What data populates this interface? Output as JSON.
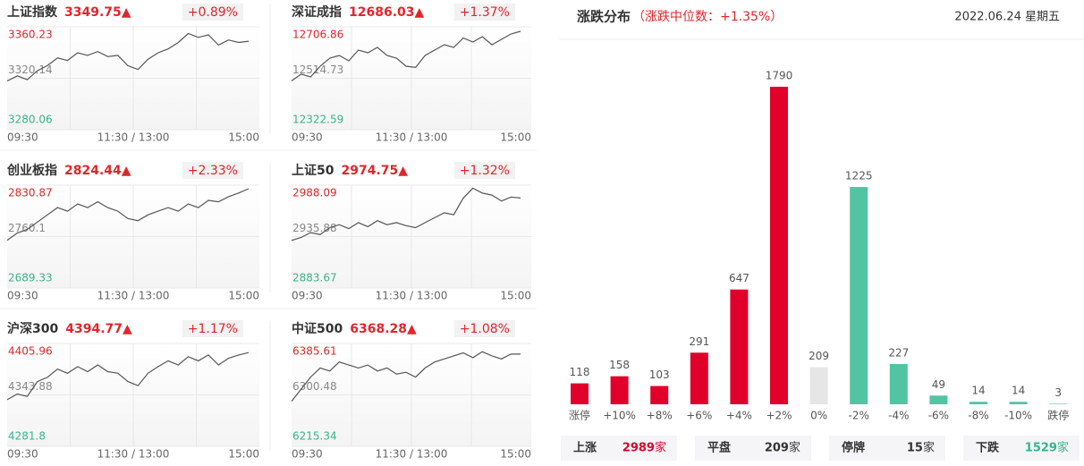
{
  "chart_data": [
    {
      "type": "line",
      "title": "上证指数",
      "price": "3349.75▲",
      "change": "+0.89%",
      "color": "#555555",
      "ylim": [
        3280.06,
        3360.23
      ],
      "yticks": [
        3280.06,
        3320.14,
        3360.23
      ],
      "x_labels": [
        "09:30",
        "11:30 / 13:00",
        "15:00"
      ],
      "values": [
        3318,
        3322,
        3319,
        3326,
        3330,
        3336,
        3334,
        3340,
        3338,
        3341,
        3337,
        3338,
        3330,
        3327,
        3335,
        3340,
        3343,
        3348,
        3355,
        3352,
        3354,
        3346,
        3350,
        3348,
        3349
      ]
    },
    {
      "type": "line",
      "title": "深证成指",
      "price": "12686.03▲",
      "change": "+1.37%",
      "color": "#555555",
      "ylim": [
        12322.59,
        12706.86
      ],
      "yticks": [
        12322.59,
        12514.73,
        12706.86
      ],
      "x_labels": [
        "09:30",
        "11:30 / 13:00",
        "15:00"
      ],
      "values": [
        12505,
        12530,
        12520,
        12560,
        12590,
        12600,
        12580,
        12620,
        12610,
        12630,
        12600,
        12590,
        12560,
        12555,
        12600,
        12620,
        12640,
        12630,
        12665,
        12650,
        12670,
        12640,
        12660,
        12680,
        12690
      ]
    },
    {
      "type": "line",
      "title": "创业板指",
      "price": "2824.44▲",
      "change": "+2.33%",
      "color": "#555555",
      "ylim": [
        2689.33,
        2830.87
      ],
      "yticks": [
        2689.33,
        2760.1,
        2830.87
      ],
      "x_labels": [
        "09:30",
        "11:30 / 13:00",
        "15:00"
      ],
      "values": [
        2755,
        2765,
        2770,
        2780,
        2790,
        2800,
        2795,
        2805,
        2800,
        2808,
        2800,
        2795,
        2785,
        2782,
        2790,
        2795,
        2800,
        2795,
        2805,
        2800,
        2810,
        2808,
        2815,
        2820,
        2826
      ]
    },
    {
      "type": "line",
      "title": "上证50",
      "price": "2974.75▲",
      "change": "+1.32%",
      "color": "#555555",
      "ylim": [
        2883.67,
        2988.09
      ],
      "yticks": [
        2883.67,
        2935.88,
        2988.09
      ],
      "x_labels": [
        "09:30",
        "11:30 / 13:00",
        "15:00"
      ],
      "values": [
        2932,
        2935,
        2940,
        2938,
        2945,
        2948,
        2944,
        2950,
        2946,
        2952,
        2948,
        2950,
        2947,
        2945,
        2950,
        2955,
        2960,
        2958,
        2975,
        2985,
        2980,
        2978,
        2972,
        2976,
        2975
      ]
    },
    {
      "type": "line",
      "title": "沪深300",
      "price": "4394.77▲",
      "change": "+1.17%",
      "color": "#555555",
      "ylim": [
        4281.8,
        4405.96
      ],
      "yticks": [
        4281.8,
        4343.88,
        4405.96
      ],
      "x_labels": [
        "09:30",
        "11:30 / 13:00",
        "15:00"
      ],
      "values": [
        4338,
        4345,
        4342,
        4360,
        4365,
        4375,
        4370,
        4378,
        4372,
        4380,
        4372,
        4370,
        4360,
        4355,
        4370,
        4378,
        4385,
        4380,
        4390,
        4385,
        4392,
        4380,
        4388,
        4392,
        4395
      ]
    },
    {
      "type": "line",
      "title": "中证500",
      "price": "6368.28▲",
      "change": "+1.08%",
      "color": "#555555",
      "ylim": [
        6215.34,
        6385.61
      ],
      "yticks": [
        6215.34,
        6300.48,
        6385.61
      ],
      "x_labels": [
        "09:30",
        "11:30 / 13:00",
        "15:00"
      ],
      "values": [
        6290,
        6310,
        6330,
        6345,
        6340,
        6355,
        6350,
        6345,
        6350,
        6340,
        6345,
        6335,
        6338,
        6330,
        6345,
        6355,
        6360,
        6365,
        6370,
        6362,
        6372,
        6365,
        6360,
        6368,
        6368
      ]
    },
    {
      "type": "bar",
      "title": "涨跌分布",
      "subtitle": "（涨跌中位数：+1.35%）",
      "date": "2022.06.24 星期五",
      "categories": [
        "涨停",
        "+10%",
        "+8%",
        "+6%",
        "+4%",
        "+2%",
        "0%",
        "-2%",
        "-4%",
        "-6%",
        "-8%",
        "-10%",
        "跌停"
      ],
      "values": [
        118,
        158,
        103,
        291,
        647,
        1790,
        209,
        1225,
        227,
        49,
        14,
        14,
        3
      ],
      "colors": [
        "#e0002a",
        "#e0002a",
        "#e0002a",
        "#e0002a",
        "#e0002a",
        "#e0002a",
        "#e6e6e6",
        "#52c4a2",
        "#52c4a2",
        "#52c4a2",
        "#52c4a2",
        "#52c4a2",
        "#52c4a2"
      ]
    }
  ],
  "summary": [
    {
      "label": "上涨",
      "value": 2989,
      "unit": "家",
      "color": "#e0002a"
    },
    {
      "label": "平盘",
      "value": 209,
      "unit": "家",
      "color": "#333333"
    },
    {
      "label": "停牌",
      "value": 15,
      "unit": "家",
      "color": "#333333"
    },
    {
      "label": "下跌",
      "value": 1529,
      "unit": "家",
      "color": "#3bb28b"
    }
  ]
}
